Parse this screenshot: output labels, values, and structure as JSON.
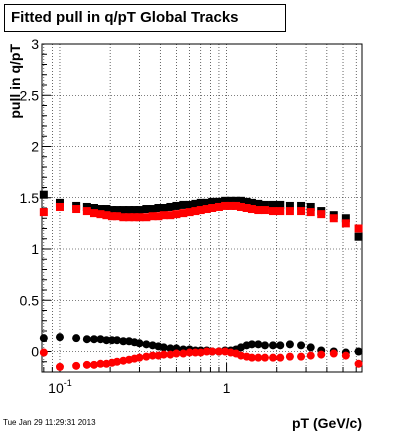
{
  "title": "Fitted pull in q/pT  Global Tracks",
  "footer_timestamp": "Tue Jan 29 11:29:31 2013",
  "colors": {
    "series_black": "#000000",
    "series_red": "#ff0000",
    "grid": "#000000"
  },
  "chart_data": {
    "type": "scatter",
    "title": "Fitted pull in q/pT  Global Tracks",
    "xlabel": "pT (GeV/c)",
    "ylabel": "pull in q/pT",
    "xscale": "log",
    "xlim": [
      0.078,
      6.5
    ],
    "ylim": [
      -0.2,
      3
    ],
    "grid": true,
    "legend": "none",
    "x_tick_labels": [
      {
        "value": 0.1,
        "base": "10",
        "exp": "-1"
      },
      {
        "value": 1,
        "base": "1",
        "exp": ""
      }
    ],
    "y_tick_labels": [
      {
        "value": 0,
        "label": "0"
      },
      {
        "value": 0.5,
        "label": "0.5"
      },
      {
        "value": 1,
        "label": "1"
      },
      {
        "value": 1.5,
        "label": "1.5"
      },
      {
        "value": 2,
        "label": "2"
      },
      {
        "value": 2.5,
        "label": "2.5"
      },
      {
        "value": 3,
        "label": "3"
      }
    ],
    "series": [
      {
        "color": "#000000",
        "marker": "square",
        "points": [
          [
            0.08,
            1.53
          ],
          [
            0.1,
            1.45
          ],
          [
            0.125,
            1.42
          ],
          [
            0.145,
            1.41
          ],
          [
            0.16,
            1.4
          ],
          [
            0.175,
            1.39
          ],
          [
            0.19,
            1.39
          ],
          [
            0.205,
            1.38
          ],
          [
            0.22,
            1.38
          ],
          [
            0.24,
            1.38
          ],
          [
            0.26,
            1.38
          ],
          [
            0.28,
            1.38
          ],
          [
            0.3,
            1.38
          ],
          [
            0.33,
            1.39
          ],
          [
            0.36,
            1.39
          ],
          [
            0.39,
            1.4
          ],
          [
            0.42,
            1.4
          ],
          [
            0.46,
            1.41
          ],
          [
            0.5,
            1.42
          ],
          [
            0.55,
            1.43
          ],
          [
            0.6,
            1.43
          ],
          [
            0.65,
            1.44
          ],
          [
            0.7,
            1.45
          ],
          [
            0.76,
            1.45
          ],
          [
            0.82,
            1.46
          ],
          [
            0.9,
            1.46
          ],
          [
            0.98,
            1.47
          ],
          [
            1.06,
            1.47
          ],
          [
            1.14,
            1.47
          ],
          [
            1.22,
            1.47
          ],
          [
            1.32,
            1.46
          ],
          [
            1.42,
            1.45
          ],
          [
            1.55,
            1.44
          ],
          [
            1.7,
            1.43
          ],
          [
            1.9,
            1.43
          ],
          [
            2.1,
            1.43
          ],
          [
            2.4,
            1.42
          ],
          [
            2.8,
            1.42
          ],
          [
            3.2,
            1.41
          ],
          [
            3.7,
            1.37
          ],
          [
            4.4,
            1.33
          ],
          [
            5.2,
            1.3
          ],
          [
            6.2,
            1.12
          ]
        ]
      },
      {
        "color": "#ff0000",
        "marker": "square",
        "points": [
          [
            0.08,
            1.36
          ],
          [
            0.1,
            1.41
          ],
          [
            0.125,
            1.39
          ],
          [
            0.145,
            1.37
          ],
          [
            0.16,
            1.35
          ],
          [
            0.175,
            1.34
          ],
          [
            0.19,
            1.33
          ],
          [
            0.205,
            1.32
          ],
          [
            0.22,
            1.32
          ],
          [
            0.24,
            1.31
          ],
          [
            0.26,
            1.31
          ],
          [
            0.28,
            1.31
          ],
          [
            0.3,
            1.31
          ],
          [
            0.33,
            1.31
          ],
          [
            0.36,
            1.32
          ],
          [
            0.39,
            1.32
          ],
          [
            0.42,
            1.33
          ],
          [
            0.46,
            1.33
          ],
          [
            0.5,
            1.34
          ],
          [
            0.55,
            1.35
          ],
          [
            0.6,
            1.36
          ],
          [
            0.65,
            1.37
          ],
          [
            0.7,
            1.38
          ],
          [
            0.76,
            1.39
          ],
          [
            0.82,
            1.4
          ],
          [
            0.9,
            1.41
          ],
          [
            0.98,
            1.42
          ],
          [
            1.06,
            1.42
          ],
          [
            1.14,
            1.42
          ],
          [
            1.22,
            1.41
          ],
          [
            1.32,
            1.4
          ],
          [
            1.42,
            1.39
          ],
          [
            1.55,
            1.38
          ],
          [
            1.7,
            1.38
          ],
          [
            1.9,
            1.37
          ],
          [
            2.1,
            1.37
          ],
          [
            2.4,
            1.37
          ],
          [
            2.8,
            1.37
          ],
          [
            3.2,
            1.36
          ],
          [
            3.7,
            1.34
          ],
          [
            4.4,
            1.3
          ],
          [
            5.2,
            1.25
          ],
          [
            6.2,
            1.2
          ]
        ]
      },
      {
        "color": "#000000",
        "marker": "circle",
        "points": [
          [
            0.08,
            0.13
          ],
          [
            0.1,
            0.14
          ],
          [
            0.125,
            0.13
          ],
          [
            0.145,
            0.12
          ],
          [
            0.16,
            0.12
          ],
          [
            0.175,
            0.12
          ],
          [
            0.19,
            0.11
          ],
          [
            0.205,
            0.11
          ],
          [
            0.22,
            0.11
          ],
          [
            0.24,
            0.1
          ],
          [
            0.26,
            0.1
          ],
          [
            0.28,
            0.09
          ],
          [
            0.3,
            0.08
          ],
          [
            0.33,
            0.07
          ],
          [
            0.36,
            0.06
          ],
          [
            0.39,
            0.05
          ],
          [
            0.42,
            0.04
          ],
          [
            0.46,
            0.03
          ],
          [
            0.5,
            0.03
          ],
          [
            0.55,
            0.02
          ],
          [
            0.6,
            0.02
          ],
          [
            0.65,
            0.01
          ],
          [
            0.7,
            0.01
          ],
          [
            0.76,
            0.01
          ],
          [
            0.82,
            0.0
          ],
          [
            0.9,
            0.0
          ],
          [
            0.98,
            0.01
          ],
          [
            1.06,
            0.01
          ],
          [
            1.14,
            0.02
          ],
          [
            1.22,
            0.04
          ],
          [
            1.32,
            0.06
          ],
          [
            1.42,
            0.07
          ],
          [
            1.55,
            0.07
          ],
          [
            1.7,
            0.06
          ],
          [
            1.9,
            0.06
          ],
          [
            2.1,
            0.06
          ],
          [
            2.4,
            0.07
          ],
          [
            2.8,
            0.06
          ],
          [
            3.2,
            0.04
          ],
          [
            3.7,
            0.01
          ],
          [
            4.4,
            0.0
          ],
          [
            5.2,
            -0.01
          ],
          [
            6.2,
            0.0
          ]
        ]
      },
      {
        "color": "#ff0000",
        "marker": "circle",
        "points": [
          [
            0.08,
            -0.01
          ],
          [
            0.1,
            -0.15
          ],
          [
            0.125,
            -0.14
          ],
          [
            0.145,
            -0.13
          ],
          [
            0.16,
            -0.13
          ],
          [
            0.175,
            -0.12
          ],
          [
            0.19,
            -0.12
          ],
          [
            0.205,
            -0.11
          ],
          [
            0.22,
            -0.1
          ],
          [
            0.24,
            -0.09
          ],
          [
            0.26,
            -0.08
          ],
          [
            0.28,
            -0.07
          ],
          [
            0.3,
            -0.06
          ],
          [
            0.33,
            -0.05
          ],
          [
            0.36,
            -0.04
          ],
          [
            0.39,
            -0.04
          ],
          [
            0.42,
            -0.03
          ],
          [
            0.46,
            -0.03
          ],
          [
            0.5,
            -0.02
          ],
          [
            0.55,
            -0.02
          ],
          [
            0.6,
            -0.01
          ],
          [
            0.65,
            -0.01
          ],
          [
            0.7,
            -0.01
          ],
          [
            0.76,
            0.0
          ],
          [
            0.82,
            0.0
          ],
          [
            0.9,
            0.0
          ],
          [
            0.98,
            0.0
          ],
          [
            1.06,
            -0.01
          ],
          [
            1.14,
            -0.02
          ],
          [
            1.22,
            -0.04
          ],
          [
            1.32,
            -0.05
          ],
          [
            1.42,
            -0.06
          ],
          [
            1.55,
            -0.06
          ],
          [
            1.7,
            -0.06
          ],
          [
            1.9,
            -0.06
          ],
          [
            2.1,
            -0.06
          ],
          [
            2.4,
            -0.05
          ],
          [
            2.8,
            -0.05
          ],
          [
            3.2,
            -0.04
          ],
          [
            3.7,
            -0.03
          ],
          [
            4.4,
            -0.02
          ],
          [
            5.2,
            -0.04
          ],
          [
            6.2,
            -0.12
          ]
        ]
      }
    ]
  }
}
